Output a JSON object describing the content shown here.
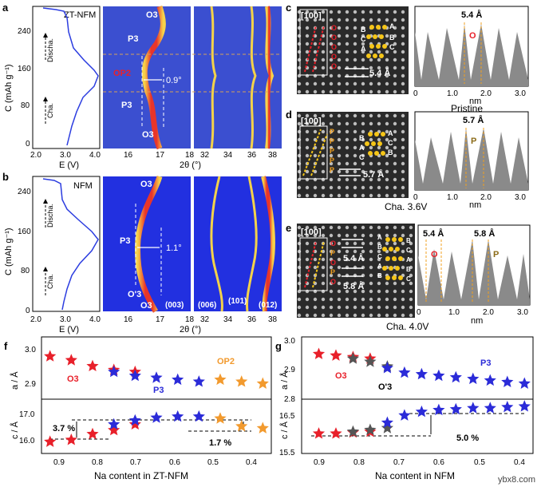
{
  "panel_a": {
    "letter": "a",
    "title": "ZT-NFM",
    "ylabel": "C (mAh g⁻¹)",
    "xlabel": "E (V)",
    "ytick": [
      "0",
      "80",
      "160",
      "240"
    ],
    "xtick": [
      "2.0",
      "3.0",
      "4.0"
    ],
    "discha": "Discha.",
    "cha": "Cha.",
    "phases": [
      "O3",
      "P3",
      "OP2",
      "P3",
      "O3"
    ],
    "angle": "0.9°",
    "xlabel2": "2θ (°)",
    "tth_ticks": [
      "16",
      "17",
      "18",
      "32",
      "34",
      "36",
      "38"
    ]
  },
  "panel_b": {
    "letter": "b",
    "title": "NFM",
    "ylabel": "C (mAh g⁻¹)",
    "xlabel": "E (V)",
    "ytick": [
      "0",
      "80",
      "160",
      "240"
    ],
    "xtick": [
      "2.0",
      "3.0",
      "4.0"
    ],
    "discha": "Discha.",
    "cha": "Cha.",
    "phases": [
      "O3",
      "P3",
      "O'3",
      "O3"
    ],
    "angle": "1.1°",
    "hkl": [
      "(003)",
      "(006)",
      "(101)",
      "(012)"
    ],
    "xlabel2": "2θ (°)",
    "tth_ticks": [
      "16",
      "17",
      "18",
      "32",
      "34",
      "36",
      "38"
    ]
  },
  "panel_c": {
    "letter": "c",
    "zone": "[100]",
    "spacing": "5.4 Å",
    "peak_label": "5.4 Å",
    "peak_phase": "O",
    "stack": [
      "B",
      "A",
      "C",
      "B",
      "A",
      "C"
    ],
    "caption": "Pristine",
    "xlabel": "nm",
    "xtick": [
      "0",
      "1.0",
      "2.0",
      "3.0"
    ]
  },
  "panel_d": {
    "letter": "d",
    "zone": "[100]",
    "spacing": "5.7 Å",
    "peak_label": "5.7 Å",
    "peak_phase": "P",
    "stack": [
      "A",
      "B",
      "C",
      "A",
      "B",
      "C"
    ],
    "caption": "Cha. 3.6V",
    "xlabel": "nm",
    "xtick": [
      "0",
      "1.0",
      "2.0",
      "3.0"
    ]
  },
  "panel_e": {
    "letter": "e",
    "zone": "[100]",
    "spacing1": "5.4 Å",
    "spacing2": "5.8 Å",
    "peak_label1": "5.4 Å",
    "peak_phase1": "O",
    "peak_label2": "5.8 Å",
    "peak_phase2": "P",
    "stack": [
      "A",
      "B",
      "B",
      "C",
      "C",
      "A",
      "A",
      "B",
      "B",
      "C"
    ],
    "side": [
      "O",
      "P",
      "O",
      "P",
      "O"
    ],
    "caption": "Cha. 4.0V",
    "xlabel": "nm",
    "xtick": [
      "0",
      "1.0",
      "2.0",
      "3.0"
    ]
  },
  "panel_f": {
    "letter": "f",
    "xlabel": "Na content in ZT-NFM",
    "ylabel_a": "a / Å",
    "ylabel_c": "c / Å",
    "xtick": [
      "0.9",
      "0.8",
      "0.7",
      "0.6",
      "0.5",
      "0.4"
    ],
    "ytick_a": [
      "2.9",
      "3.0"
    ],
    "ytick_c": [
      "16.0",
      "17.0"
    ],
    "phase_labels": [
      "O3",
      "P3",
      "OP2"
    ],
    "pct1": "3.7 %",
    "pct2": "1.7 %"
  },
  "panel_g": {
    "letter": "g",
    "xlabel": "Na content in NFM",
    "ylabel_a": "a / Å",
    "ylabel_c": "c / Å",
    "xtick": [
      "0.9",
      "0.8",
      "0.7",
      "0.6",
      "0.5",
      "0.4"
    ],
    "ytick_a": [
      "2.8",
      "2.9",
      "3.0"
    ],
    "ytick_c": [
      "15.5",
      "16.5"
    ],
    "phase_labels": [
      "O3",
      "O'3",
      "P3"
    ],
    "pct": "5.0 %"
  },
  "watermark": "ybx8.com",
  "chart_data": [
    {
      "type": "scatter",
      "panel": "f-a",
      "xlabel": "Na content in ZT-NFM",
      "ylabel": "a / Å",
      "xlim": [
        0.92,
        0.38
      ],
      "ylim": [
        2.86,
        3.02
      ],
      "series": [
        {
          "name": "O3",
          "color": "#e8202a",
          "x": [
            0.9,
            0.85,
            0.8,
            0.75,
            0.7
          ],
          "y": [
            2.97,
            2.96,
            2.945,
            2.935,
            2.93
          ]
        },
        {
          "name": "P3",
          "color": "#2b2bd8",
          "x": [
            0.75,
            0.7,
            0.65,
            0.6,
            0.55
          ],
          "y": [
            2.93,
            2.92,
            2.915,
            2.91,
            2.905
          ]
        },
        {
          "name": "OP2",
          "color": "#f29a2e",
          "x": [
            0.5,
            0.45,
            0.4
          ],
          "y": [
            2.91,
            2.905,
            2.9
          ]
        }
      ]
    },
    {
      "type": "scatter",
      "panel": "f-c",
      "xlabel": "Na content in ZT-NFM",
      "ylabel": "c / Å",
      "xlim": [
        0.92,
        0.38
      ],
      "ylim": [
        15.8,
        17.2
      ],
      "series": [
        {
          "name": "O3",
          "color": "#e8202a",
          "x": [
            0.9,
            0.85,
            0.8,
            0.75,
            0.7
          ],
          "y": [
            16.1,
            16.15,
            16.3,
            16.4,
            16.55
          ]
        },
        {
          "name": "P3",
          "color": "#2b2bd8",
          "x": [
            0.75,
            0.7,
            0.65,
            0.6,
            0.55
          ],
          "y": [
            16.55,
            16.65,
            16.72,
            16.75,
            16.75
          ]
        },
        {
          "name": "OP2",
          "color": "#f29a2e",
          "x": [
            0.5,
            0.45,
            0.4
          ],
          "y": [
            16.7,
            16.5,
            16.45
          ]
        }
      ]
    },
    {
      "type": "scatter",
      "panel": "g-a",
      "xlabel": "Na content in NFM",
      "ylabel": "a / Å",
      "xlim": [
        0.92,
        0.38
      ],
      "ylim": [
        2.8,
        3.0
      ],
      "series": [
        {
          "name": "O3",
          "color": "#e8202a",
          "x": [
            0.88,
            0.84,
            0.8,
            0.76
          ],
          "y": [
            2.945,
            2.94,
            2.935,
            2.93
          ]
        },
        {
          "name": "O'3",
          "color": "#555555",
          "x": [
            0.8,
            0.76,
            0.72
          ],
          "y": [
            2.93,
            2.92,
            2.905
          ]
        },
        {
          "name": "P3",
          "color": "#2b2bd8",
          "x": [
            0.72,
            0.68,
            0.64,
            0.6,
            0.56,
            0.52,
            0.48,
            0.44,
            0.4
          ],
          "y": [
            2.9,
            2.885,
            2.88,
            2.875,
            2.87,
            2.865,
            2.86,
            2.855,
            2.85
          ]
        }
      ]
    },
    {
      "type": "scatter",
      "panel": "g-c",
      "xlabel": "Na content in NFM",
      "ylabel": "c / Å",
      "xlim": [
        0.92,
        0.38
      ],
      "ylim": [
        15.5,
        17.0
      ],
      "series": [
        {
          "name": "O3",
          "color": "#e8202a",
          "x": [
            0.88,
            0.84,
            0.8,
            0.76
          ],
          "y": [
            16.05,
            16.05,
            16.08,
            16.1
          ]
        },
        {
          "name": "O'3",
          "color": "#555555",
          "x": [
            0.8,
            0.76,
            0.72
          ],
          "y": [
            16.1,
            16.15,
            16.2
          ]
        },
        {
          "name": "P3",
          "color": "#2b2bd8",
          "x": [
            0.72,
            0.68,
            0.64,
            0.6,
            0.56,
            0.52,
            0.48,
            0.44,
            0.4
          ],
          "y": [
            16.35,
            16.55,
            16.65,
            16.7,
            16.72,
            16.75,
            16.75,
            16.78,
            16.8
          ]
        }
      ]
    }
  ]
}
